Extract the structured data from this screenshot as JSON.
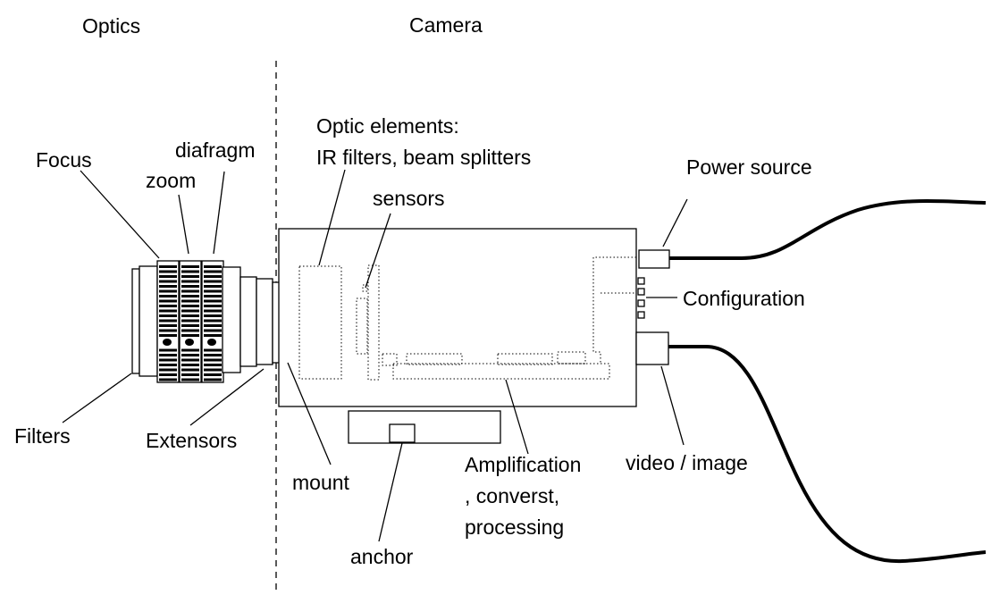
{
  "sections": {
    "optics": "Optics",
    "camera": "Camera"
  },
  "labels": {
    "focus": "Focus",
    "zoom": "zoom",
    "diafragm": "diafragm",
    "filters": "Filters",
    "extensors": "Extensors",
    "mount": "mount",
    "optic_elements_line1": "Optic elements:",
    "optic_elements_line2": "IR filters, beam splitters",
    "sensors": "sensors",
    "power_source": "Power source",
    "configuration": "Configuration",
    "video_image": "video / image",
    "amplification_line1": "Amplification",
    "amplification_line2": ", converst,",
    "amplification_line3": "processing",
    "anchor": "anchor"
  }
}
